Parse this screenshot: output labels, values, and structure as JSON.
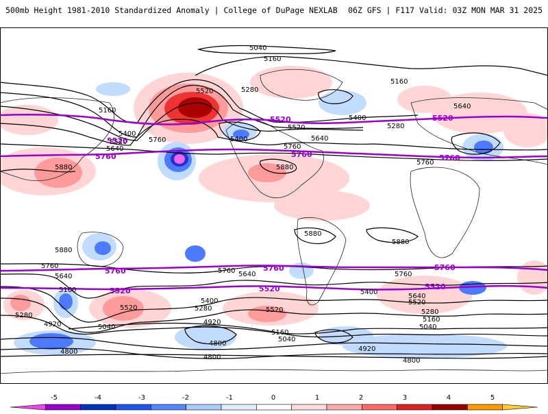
{
  "header": {
    "title_left": "500mb Height 1981-2010 Standardized Anomaly | College of DuPage NEXLAB",
    "title_right": "06Z GFS | F117 Valid: 03Z MON MAR 31 2025"
  },
  "map": {
    "contour_labels_black": [
      {
        "id": "c5040-top",
        "text": "5040"
      },
      {
        "id": "c5160-top",
        "text": "5160"
      },
      {
        "id": "c5520-npac",
        "text": "5520"
      },
      {
        "id": "c5280-nam",
        "text": "5280"
      },
      {
        "id": "c5160-asia",
        "text": "5160"
      },
      {
        "id": "c5400-asia",
        "text": "5400"
      },
      {
        "id": "c5520-asia",
        "text": "5520"
      },
      {
        "id": "c5640-asia",
        "text": "5640"
      },
      {
        "id": "c5760-npac",
        "text": "5760"
      },
      {
        "id": "c5880-asia",
        "text": "5880"
      },
      {
        "id": "c5400-nam-low",
        "text": "5400"
      },
      {
        "id": "c5520-nam",
        "text": "5520"
      },
      {
        "id": "c5400-natl",
        "text": "5400"
      },
      {
        "id": "c5280-natl",
        "text": "5280"
      },
      {
        "id": "c5640-nam",
        "text": "5640"
      },
      {
        "id": "c5760-nam",
        "text": "5760"
      },
      {
        "id": "c5880-carib",
        "text": "5880"
      },
      {
        "id": "c5160-arctic",
        "text": "5160"
      },
      {
        "id": "c5640-europe",
        "text": "5640"
      },
      {
        "id": "c5760-afr",
        "text": "5760"
      },
      {
        "id": "c5880-sam",
        "text": "5880"
      },
      {
        "id": "c5880-safr",
        "text": "5880"
      },
      {
        "id": "c5880-io",
        "text": "5880"
      },
      {
        "id": "c5760-sio",
        "text": "5760"
      },
      {
        "id": "c5640-sio",
        "text": "5640"
      },
      {
        "id": "c5160-sio",
        "text": "5160"
      },
      {
        "id": "c5280-sio",
        "text": "5280"
      },
      {
        "id": "c5520-aus",
        "text": "5520"
      },
      {
        "id": "c5040-aus",
        "text": "5040"
      },
      {
        "id": "c4920-sio",
        "text": "4920"
      },
      {
        "id": "c4800-west",
        "text": "4800"
      },
      {
        "id": "c5760-spac",
        "text": "5760"
      },
      {
        "id": "c5640-spac",
        "text": "5640"
      },
      {
        "id": "c5400-spac",
        "text": "5400"
      },
      {
        "id": "c5280-spac",
        "text": "5280"
      },
      {
        "id": "c4920-spac",
        "text": "4920"
      },
      {
        "id": "c4800-spac",
        "text": "4800"
      },
      {
        "id": "c5520-spac",
        "text": "5520"
      },
      {
        "id": "c5160-spac",
        "text": "5160"
      },
      {
        "id": "c5040-spac",
        "text": "5040"
      },
      {
        "id": "c4800-mid",
        "text": "4800"
      },
      {
        "id": "c5400-sam",
        "text": "5400"
      },
      {
        "id": "c4920-satl",
        "text": "4920"
      },
      {
        "id": "c5760-satl",
        "text": "5760"
      },
      {
        "id": "c5640-satl",
        "text": "5640"
      },
      {
        "id": "c5520-satl",
        "text": "5520"
      },
      {
        "id": "c5280-satl",
        "text": "5280"
      },
      {
        "id": "c5160-satl",
        "text": "5160"
      },
      {
        "id": "c5040-satl",
        "text": "5040"
      },
      {
        "id": "c4800-east",
        "text": "4800"
      }
    ],
    "contour_labels_purple": [
      {
        "id": "p5520-west",
        "text": "5520"
      },
      {
        "id": "p5760-west",
        "text": "5760"
      },
      {
        "id": "p5520-nam",
        "text": "5520"
      },
      {
        "id": "p5760-nam",
        "text": "5760"
      },
      {
        "id": "p5520-eur",
        "text": "5520"
      },
      {
        "id": "p5760-afr",
        "text": "5760"
      },
      {
        "id": "p5760-spac",
        "text": "5760"
      },
      {
        "id": "p5520-spac",
        "text": "5520"
      },
      {
        "id": "p5760-satl",
        "text": "5760"
      },
      {
        "id": "p5520-satl-w",
        "text": "5520"
      },
      {
        "id": "p5760-sio",
        "text": "5760"
      },
      {
        "id": "p5520-sio",
        "text": "5520"
      }
    ]
  },
  "colorbar": {
    "tick_labels": [
      "-5",
      "-4",
      "-3",
      "-2",
      "-1",
      "0",
      "1",
      "2",
      "3",
      "4",
      "5"
    ],
    "colors": [
      "#ee44ee",
      "#9900cc",
      "#0033bb",
      "#2255ee",
      "#5588ff",
      "#aaccff",
      "#ddeeff",
      "#ffffff",
      "#ffdddd",
      "#ffaaaa",
      "#ff6666",
      "#dd2222",
      "#990000",
      "#ff9900",
      "#ffcc33"
    ]
  }
}
